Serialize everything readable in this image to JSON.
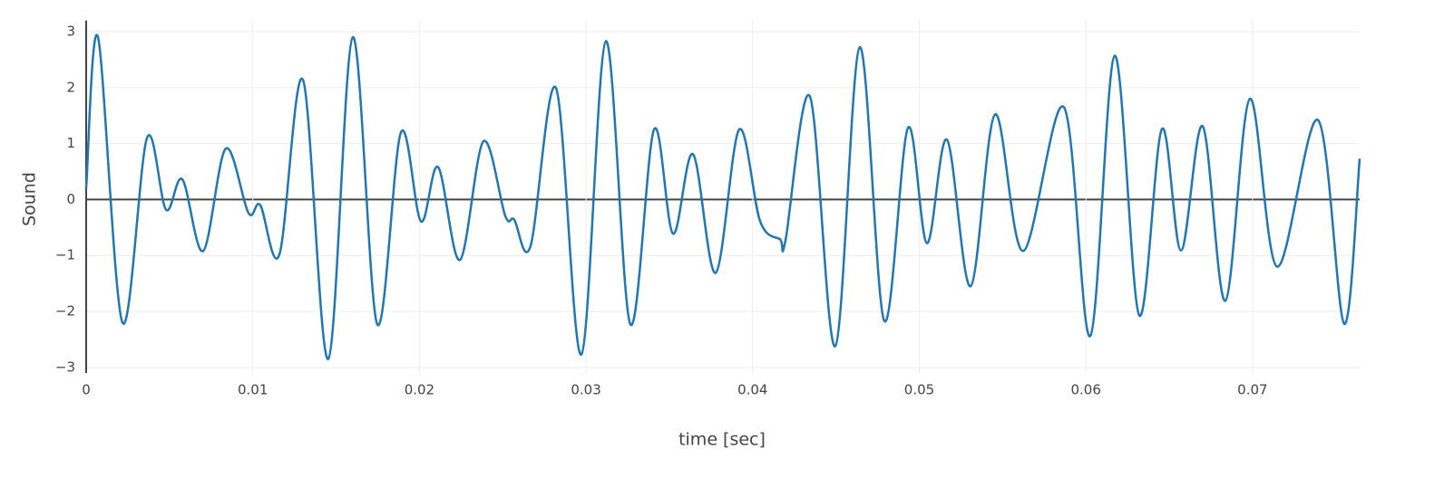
{
  "chart_data": {
    "type": "line",
    "x_label": "time [sec]",
    "y_label": "Sound",
    "x": [
      0,
      0.00071,
      0.00218,
      0.00365,
      0.00479,
      0.00577,
      0.00702,
      0.00838,
      0.00974,
      0.01045,
      0.0116,
      0.01301,
      0.01453,
      0.016,
      0.01747,
      0.01889,
      0.02009,
      0.02112,
      0.02243,
      0.02384,
      0.02515,
      0.02569,
      0.02667,
      0.0282,
      0.02972,
      0.03119,
      0.03266,
      0.03408,
      0.03522,
      0.03642,
      0.03778,
      0.03919,
      0.04045,
      0.04164,
      0.04197,
      0.04344,
      0.04496,
      0.04643,
      0.0479,
      0.04932,
      0.05046,
      0.05166,
      0.05308,
      0.05455,
      0.05623,
      0.05868,
      0.06026,
      0.06173,
      0.0632,
      0.06456,
      0.06571,
      0.06701,
      0.06837,
      0.06984,
      0.07148,
      0.07393,
      0.0755,
      0.07643
    ],
    "series": [
      {
        "name": "Sound",
        "color": "#1f77b4",
        "values": [
          0.2,
          2.9,
          -2.2,
          1.1,
          -0.18,
          0.36,
          -0.92,
          0.91,
          -0.24,
          -0.1,
          -0.98,
          2.14,
          -2.85,
          2.9,
          -2.23,
          1.2,
          -0.39,
          0.58,
          -1.08,
          1.04,
          -0.29,
          -0.36,
          -0.83,
          1.99,
          -2.77,
          2.83,
          -2.23,
          1.25,
          -0.61,
          0.81,
          -1.31,
          1.25,
          -0.39,
          -0.71,
          -0.73,
          1.84,
          -2.62,
          2.72,
          -2.17,
          1.28,
          -0.78,
          1.07,
          -1.55,
          1.52,
          -0.92,
          1.65,
          -2.44,
          2.57,
          -2.07,
          1.26,
          -0.91,
          1.31,
          -1.81,
          1.8,
          -1.2,
          1.42,
          -2.22,
          0.73
        ]
      }
    ],
    "xlim": [
      0,
      0.07643
    ],
    "ylim": [
      -3.1,
      3.2
    ],
    "xticks": [
      0,
      0.01,
      0.02,
      0.03,
      0.04,
      0.05,
      0.06,
      0.07
    ],
    "yticks": [
      {
        "value": -3,
        "label": "−3"
      },
      {
        "value": -2,
        "label": "−2"
      },
      {
        "value": -1,
        "label": "−1"
      },
      0,
      1,
      2,
      3
    ],
    "grid": true
  }
}
